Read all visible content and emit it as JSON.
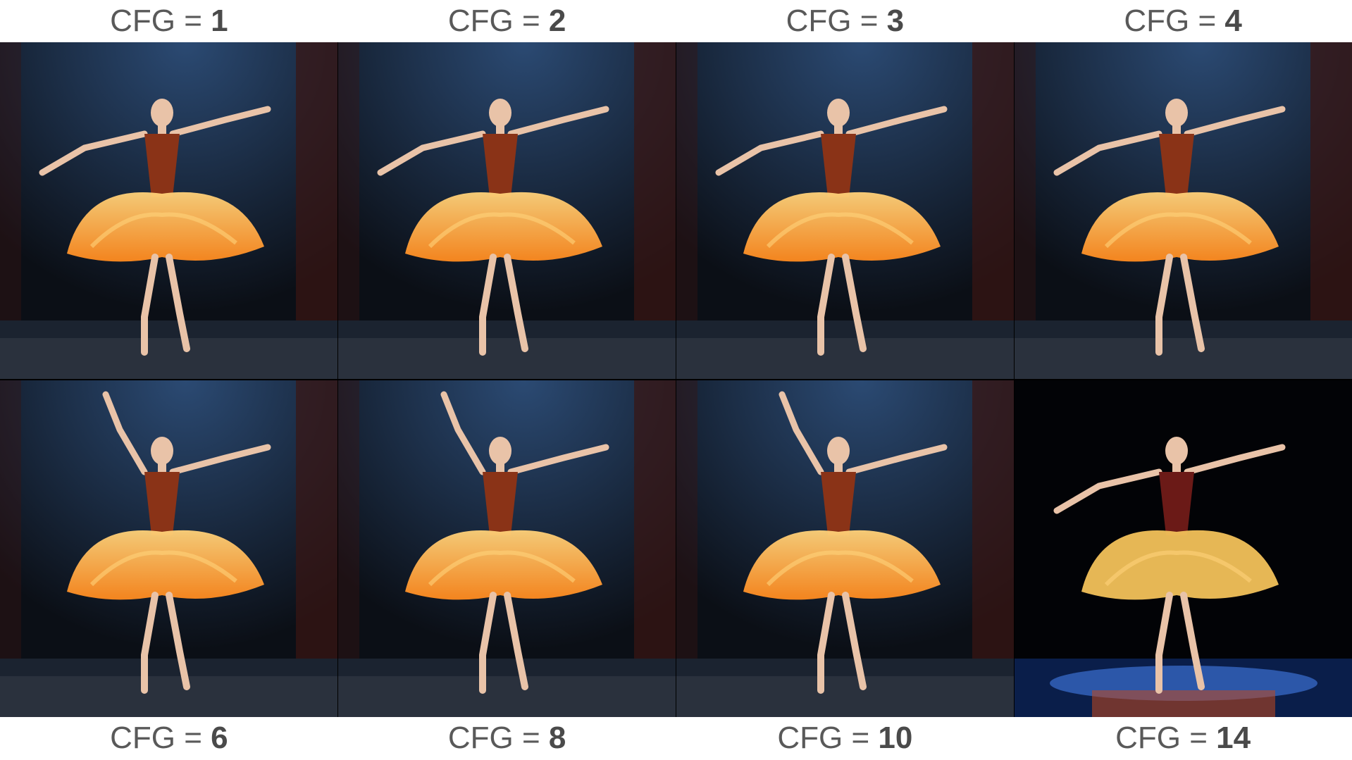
{
  "labels_top": [
    {
      "prefix": "CFG = ",
      "value": "1"
    },
    {
      "prefix": "CFG = ",
      "value": "2"
    },
    {
      "prefix": "CFG = ",
      "value": "3"
    },
    {
      "prefix": "CFG = ",
      "value": "4"
    }
  ],
  "labels_bottom": [
    {
      "prefix": "CFG = ",
      "value": "6"
    },
    {
      "prefix": "CFG = ",
      "value": "8"
    },
    {
      "prefix": "CFG = ",
      "value": "10"
    },
    {
      "prefix": "CFG = ",
      "value": "14"
    }
  ],
  "colors": {
    "label_text": "#595959",
    "stage_dark": "#0b0f16",
    "curtain": "#3a1512",
    "flame_outer": "#ff8a1e",
    "flame_inner": "#ffd27a",
    "skin": "#e9c3a8",
    "spotlight_blue": "#2b4a73"
  }
}
